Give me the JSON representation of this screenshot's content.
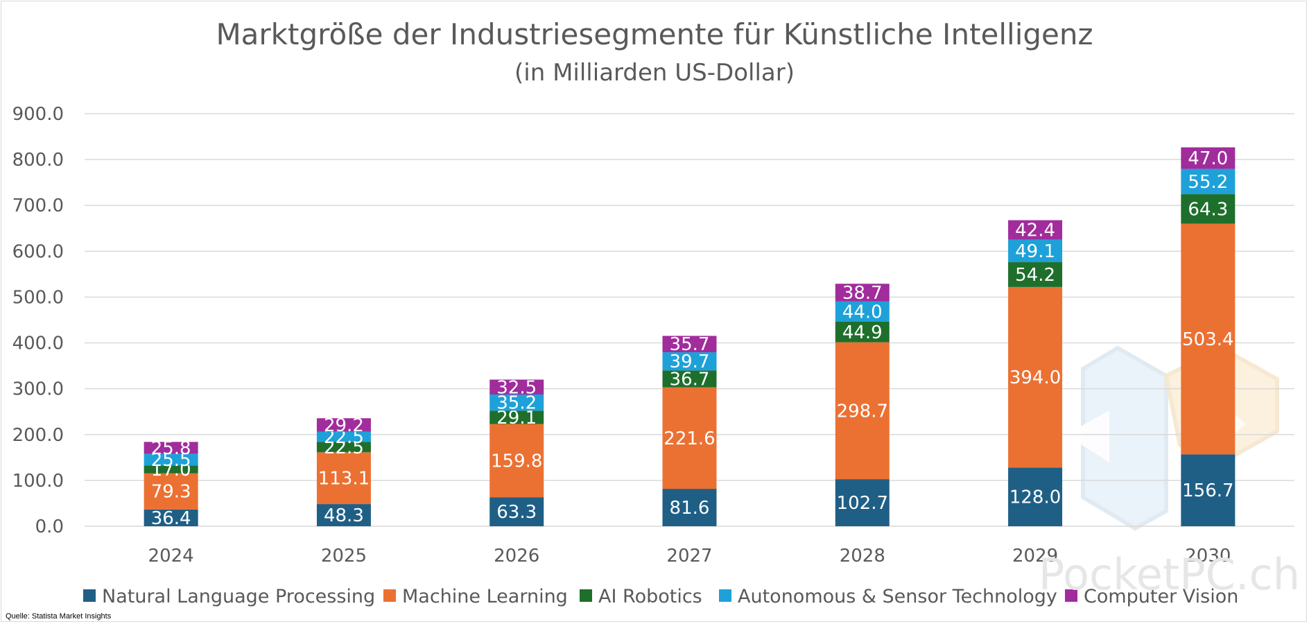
{
  "chart_data": {
    "type": "bar",
    "stacked": true,
    "title": "Marktgröße der Industriesegmente für Künstliche Intelligenz",
    "subtitle": "(in Milliarden US-Dollar)",
    "categories": [
      "2024",
      "2025",
      "2026",
      "2027",
      "2028",
      "2029",
      "2030"
    ],
    "series": [
      {
        "name": "Natural Language Processing",
        "color": "#1f5f86",
        "values": [
          36.4,
          48.3,
          63.3,
          81.6,
          102.7,
          128.0,
          156.7
        ]
      },
      {
        "name": "Machine Learning",
        "color": "#eb7133",
        "values": [
          79.3,
          113.1,
          159.8,
          221.6,
          298.7,
          394.0,
          503.4
        ]
      },
      {
        "name": "AI Robotics",
        "color": "#1e6f2b",
        "values": [
          17.0,
          22.5,
          29.1,
          36.7,
          44.9,
          54.2,
          64.3
        ]
      },
      {
        "name": "Autonomous & Sensor Technology",
        "color": "#1ea1d9",
        "values": [
          25.5,
          22.5,
          35.2,
          39.7,
          44.0,
          49.1,
          55.2
        ]
      },
      {
        "name": "Computer Vision",
        "color": "#a12c9c",
        "values": [
          25.8,
          29.2,
          32.5,
          35.7,
          38.7,
          42.4,
          47.0
        ]
      }
    ],
    "yticks": [
      "900.0",
      "800.0",
      "700.0",
      "600.0",
      "500.0",
      "400.0",
      "300.0",
      "200.0",
      "100.0",
      "0.0"
    ],
    "ylim": [
      0,
      900
    ],
    "xlabel": "",
    "ylabel": "",
    "grid": true,
    "legend_position": "bottom"
  },
  "source": "Quelle: Statista Market Insights",
  "watermark": "PocketPC.ch"
}
